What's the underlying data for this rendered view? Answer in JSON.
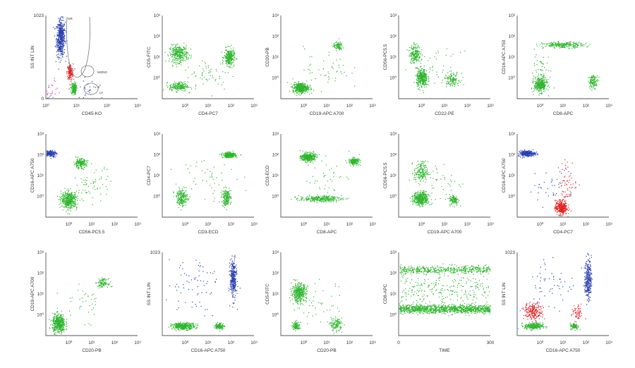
{
  "colors": {
    "green": "#2fb52f",
    "blue": "#2b3fae",
    "red": "#e02424",
    "magenta": "#c040c0",
    "axis": "#555555",
    "gate": "#7a7a7a"
  },
  "chart_data": [
    {
      "type": "scatter",
      "xlabel": "CD45-KO",
      "ylabel": "SS INT LIN",
      "x_scale": "log",
      "y_scale": "linear",
      "xlim": [
        1,
        1000
      ],
      "ylim": [
        0,
        1023
      ],
      "x_ticks": [
        "10⁰",
        "10¹",
        "10²",
        "10³"
      ],
      "y_ticks": [
        "0",
        "1023"
      ],
      "gate_labels": [
        "GR",
        "MONO",
        "LY"
      ],
      "clusters": [
        {
          "color": "blue",
          "x": 3,
          "y": 750,
          "n": 520,
          "sx": 0.07,
          "sy": 0.11
        },
        {
          "color": "red",
          "x": 6,
          "y": 330,
          "n": 160,
          "sx": 0.05,
          "sy": 0.05
        },
        {
          "color": "green",
          "x": 8,
          "y": 130,
          "n": 170,
          "sx": 0.04,
          "sy": 0.035
        },
        {
          "color": "magenta",
          "x": 1.3,
          "y": 80,
          "n": 40,
          "sx": 0.18,
          "sy": 0.08
        },
        {
          "color": "blue",
          "x": 30,
          "y": 110,
          "n": 30,
          "sx": 0.25,
          "sy": 0.1
        }
      ]
    },
    {
      "type": "scatter",
      "xlabel": "CD4-PC7",
      "ylabel": "CD5-FITC",
      "x_scale": "log",
      "y_scale": "log",
      "xlim": [
        0.1,
        1000
      ],
      "ylim": [
        0.1,
        1000
      ],
      "x_ticks": [
        "10⁰",
        "10¹",
        "10²",
        "10³"
      ],
      "y_ticks": [
        "10³",
        "10²",
        "10¹",
        "10⁰"
      ],
      "clusters": [
        {
          "color": "green",
          "x": 0.5,
          "y": 15,
          "n": 320,
          "sx": 0.2,
          "sy": 0.2
        },
        {
          "color": "green",
          "x": 80,
          "y": 10,
          "n": 280,
          "sx": 0.11,
          "sy": 0.2
        },
        {
          "color": "green",
          "x": 0.5,
          "y": 0.4,
          "n": 200,
          "sx": 0.2,
          "sy": 0.11
        },
        {
          "color": "green",
          "x": 10,
          "y": 1.5,
          "n": 60,
          "sx": 0.5,
          "sy": 0.4
        }
      ]
    },
    {
      "type": "scatter",
      "xlabel": "CD19-APC A700",
      "ylabel": "CD20-PB",
      "x_scale": "log",
      "y_scale": "log",
      "xlim": [
        0.1,
        1000
      ],
      "ylim": [
        0.1,
        1000
      ],
      "x_ticks": [
        "10⁰",
        "10¹",
        "10²",
        "10³"
      ],
      "y_ticks": [
        "10³",
        "10²",
        "10¹",
        "10⁰"
      ],
      "clusters": [
        {
          "color": "green",
          "x": 0.7,
          "y": 0.35,
          "n": 460,
          "sx": 0.17,
          "sy": 0.12
        },
        {
          "color": "green",
          "x": 30,
          "y": 35,
          "n": 90,
          "sx": 0.1,
          "sy": 0.1
        },
        {
          "color": "green",
          "x": 10,
          "y": 3,
          "n": 50,
          "sx": 0.5,
          "sy": 0.5
        }
      ]
    },
    {
      "type": "scatter",
      "xlabel": "CD22-PE",
      "ylabel": "CD56-PC5.5",
      "x_scale": "log",
      "y_scale": "log",
      "xlim": [
        0.1,
        1000
      ],
      "ylim": [
        0.1,
        1000
      ],
      "x_ticks": [
        "10⁰",
        "10¹",
        "10²",
        "10³"
      ],
      "y_ticks": [
        "10³",
        "10²",
        "10¹",
        "10⁰"
      ],
      "clusters": [
        {
          "color": "green",
          "x": 0.5,
          "y": 15,
          "n": 200,
          "sx": 0.12,
          "sy": 0.22
        },
        {
          "color": "green",
          "x": 1,
          "y": 1,
          "n": 350,
          "sx": 0.12,
          "sy": 0.22
        },
        {
          "color": "green",
          "x": 20,
          "y": 0.9,
          "n": 120,
          "sx": 0.16,
          "sy": 0.15
        },
        {
          "color": "green",
          "x": 5,
          "y": 3,
          "n": 40,
          "sx": 0.5,
          "sy": 0.4
        }
      ]
    },
    {
      "type": "scatter",
      "xlabel": "CD8-APC",
      "ylabel": "CD16-APC A750",
      "x_scale": "log",
      "y_scale": "log",
      "xlim": [
        0.1,
        1000
      ],
      "ylim": [
        0.1,
        1000
      ],
      "x_ticks": [
        "10⁰",
        "10¹",
        "10²",
        "10³"
      ],
      "y_ticks": [
        "10³",
        "10²",
        "10¹",
        "10⁰"
      ],
      "clusters": [
        {
          "color": "green",
          "x": 1,
          "y": 0.5,
          "n": 360,
          "sx": 0.14,
          "sy": 0.18
        },
        {
          "color": "green",
          "x": 10,
          "y": 40,
          "n": 240,
          "sx": 0.45,
          "sy": 0.07
        },
        {
          "color": "green",
          "x": 200,
          "y": 0.7,
          "n": 120,
          "sx": 0.1,
          "sy": 0.15
        },
        {
          "color": "green",
          "x": 1,
          "y": 5,
          "n": 40,
          "sx": 0.2,
          "sy": 0.4
        }
      ]
    },
    {
      "type": "scatter",
      "xlabel": "CD56-PC5.5",
      "ylabel": "CD16-APC A750",
      "x_scale": "log",
      "y_scale": "log",
      "xlim": [
        0.1,
        1000
      ],
      "ylim": [
        0.1,
        1000
      ],
      "x_ticks": [
        "10⁰",
        "10¹",
        "10²",
        "10³"
      ],
      "y_ticks": [
        "10³",
        "10²",
        "10¹",
        "10⁰"
      ],
      "clusters": [
        {
          "color": "blue",
          "x": 0.15,
          "y": 120,
          "n": 180,
          "sx": 0.13,
          "sy": 0.08
        },
        {
          "color": "green",
          "x": 3,
          "y": 40,
          "n": 180,
          "sx": 0.14,
          "sy": 0.11
        },
        {
          "color": "green",
          "x": 1,
          "y": 0.7,
          "n": 440,
          "sx": 0.17,
          "sy": 0.2
        },
        {
          "color": "green",
          "x": 10,
          "y": 4,
          "n": 60,
          "sx": 0.4,
          "sy": 0.4
        }
      ]
    },
    {
      "type": "scatter",
      "xlabel": "CD3-ECD",
      "ylabel": "CD4-PC7",
      "x_scale": "log",
      "y_scale": "log",
      "xlim": [
        0.1,
        1000
      ],
      "ylim": [
        0.1,
        1000
      ],
      "x_ticks": [
        "10⁰",
        "10¹",
        "10²",
        "10³"
      ],
      "y_ticks": [
        "10³",
        "10²",
        "10¹",
        "10⁰"
      ],
      "clusters": [
        {
          "color": "green",
          "x": 80,
          "y": 100,
          "n": 300,
          "sx": 0.14,
          "sy": 0.06
        },
        {
          "color": "green",
          "x": 0.7,
          "y": 0.9,
          "n": 200,
          "sx": 0.12,
          "sy": 0.2
        },
        {
          "color": "green",
          "x": 60,
          "y": 0.9,
          "n": 180,
          "sx": 0.1,
          "sy": 0.2
        },
        {
          "color": "green",
          "x": 10,
          "y": 10,
          "n": 50,
          "sx": 0.6,
          "sy": 0.6
        }
      ]
    },
    {
      "type": "scatter",
      "xlabel": "CD8-APC",
      "ylabel": "CD3-ECD",
      "x_scale": "log",
      "y_scale": "log",
      "xlim": [
        0.1,
        1000
      ],
      "ylim": [
        0.1,
        1000
      ],
      "x_ticks": [
        "10⁰",
        "10¹",
        "10²",
        "10³"
      ],
      "y_ticks": [
        "10³",
        "10²",
        "10¹",
        "10⁰"
      ],
      "clusters": [
        {
          "color": "green",
          "x": 1.5,
          "y": 80,
          "n": 380,
          "sx": 0.15,
          "sy": 0.1
        },
        {
          "color": "green",
          "x": 150,
          "y": 50,
          "n": 170,
          "sx": 0.12,
          "sy": 0.08
        },
        {
          "color": "green",
          "x": 5,
          "y": 0.8,
          "n": 280,
          "sx": 0.45,
          "sy": 0.07
        },
        {
          "color": "green",
          "x": 10,
          "y": 10,
          "n": 40,
          "sx": 0.5,
          "sy": 0.5
        }
      ]
    },
    {
      "type": "scatter",
      "xlabel": "CD19-APC A700",
      "ylabel": "CD56-PC5.5",
      "x_scale": "log",
      "y_scale": "log",
      "xlim": [
        0.1,
        1000
      ],
      "ylim": [
        0.1,
        1000
      ],
      "x_ticks": [
        "10⁰",
        "10¹",
        "10²",
        "10³"
      ],
      "y_ticks": [
        "10³",
        "10²",
        "10¹",
        "10⁰"
      ],
      "clusters": [
        {
          "color": "green",
          "x": 0.9,
          "y": 0.8,
          "n": 430,
          "sx": 0.16,
          "sy": 0.16
        },
        {
          "color": "green",
          "x": 0.9,
          "y": 15,
          "n": 180,
          "sx": 0.15,
          "sy": 0.25
        },
        {
          "color": "green",
          "x": 25,
          "y": 0.7,
          "n": 120,
          "sx": 0.1,
          "sy": 0.13
        },
        {
          "color": "green",
          "x": 8,
          "y": 5,
          "n": 40,
          "sx": 0.5,
          "sy": 0.5
        }
      ]
    },
    {
      "type": "scatter",
      "xlabel": "CD4-PC7",
      "ylabel": "CD16-APC A750",
      "x_scale": "log",
      "y_scale": "log",
      "xlim": [
        0.1,
        1000
      ],
      "ylim": [
        0.1,
        1000
      ],
      "x_ticks": [
        "10⁰",
        "10¹",
        "10²",
        "10³"
      ],
      "y_ticks": [
        "10³",
        "10²",
        "10¹",
        "10⁰"
      ],
      "clusters": [
        {
          "color": "blue",
          "x": 0.25,
          "y": 120,
          "n": 260,
          "sx": 0.18,
          "sy": 0.07
        },
        {
          "color": "red",
          "x": 8,
          "y": 0.3,
          "n": 340,
          "sx": 0.13,
          "sy": 0.17
        },
        {
          "color": "red",
          "x": 15,
          "y": 5,
          "n": 60,
          "sx": 0.2,
          "sy": 0.5
        },
        {
          "color": "blue",
          "x": 3,
          "y": 3,
          "n": 40,
          "sx": 0.5,
          "sy": 0.5
        }
      ]
    },
    {
      "type": "scatter",
      "xlabel": "CD20-PB",
      "ylabel": "CD19-APC A700",
      "x_scale": "log",
      "y_scale": "log",
      "xlim": [
        0.1,
        1000
      ],
      "ylim": [
        0.1,
        1000
      ],
      "x_ticks": [
        "10⁰",
        "10¹",
        "10²",
        "10³"
      ],
      "y_ticks": [
        "10³",
        "10²",
        "10¹",
        "10⁰"
      ],
      "clusters": [
        {
          "color": "green",
          "x": 0.35,
          "y": 0.4,
          "n": 470,
          "sx": 0.14,
          "sy": 0.22
        },
        {
          "color": "green",
          "x": 30,
          "y": 35,
          "n": 100,
          "sx": 0.11,
          "sy": 0.1
        },
        {
          "color": "green",
          "x": 5,
          "y": 5,
          "n": 40,
          "sx": 0.5,
          "sy": 0.5
        }
      ]
    },
    {
      "type": "scatter",
      "xlabel": "CD16-APC A750",
      "ylabel": "SS INT LIN",
      "x_scale": "log",
      "y_scale": "linear",
      "xlim": [
        0.1,
        1000
      ],
      "ylim": [
        0,
        1023
      ],
      "x_ticks": [
        "10⁰",
        "10¹",
        "10²",
        "10³"
      ],
      "y_ticks": [
        "1023"
      ],
      "clusters": [
        {
          "color": "blue",
          "x": 120,
          "y": 700,
          "n": 320,
          "sx": 0.07,
          "sy": 0.12
        },
        {
          "color": "green",
          "x": 0.8,
          "y": 120,
          "n": 360,
          "sx": 0.25,
          "sy": 0.02
        },
        {
          "color": "green",
          "x": 30,
          "y": 120,
          "n": 120,
          "sx": 0.1,
          "sy": 0.02
        },
        {
          "color": "blue",
          "x": 2,
          "y": 650,
          "n": 70,
          "sx": 0.55,
          "sy": 0.18
        }
      ]
    },
    {
      "type": "scatter",
      "xlabel": "CD20-PB",
      "ylabel": "CD5-FITC",
      "x_scale": "log",
      "y_scale": "log",
      "xlim": [
        0.1,
        1000
      ],
      "ylim": [
        0.1,
        1000
      ],
      "x_ticks": [
        "10⁰",
        "10¹",
        "10²",
        "10³"
      ],
      "y_ticks": [
        "10³",
        "10²",
        "10¹",
        "10⁰"
      ],
      "clusters": [
        {
          "color": "green",
          "x": 0.6,
          "y": 12,
          "n": 400,
          "sx": 0.16,
          "sy": 0.22
        },
        {
          "color": "green",
          "x": 0.45,
          "y": 0.3,
          "n": 120,
          "sx": 0.08,
          "sy": 0.1
        },
        {
          "color": "green",
          "x": 25,
          "y": 0.35,
          "n": 130,
          "sx": 0.13,
          "sy": 0.15
        },
        {
          "color": "green",
          "x": 5,
          "y": 3,
          "n": 40,
          "sx": 0.5,
          "sy": 0.5
        }
      ]
    },
    {
      "type": "scatter",
      "xlabel": "TIME",
      "ylabel": "CD8-APC",
      "x_scale": "linear",
      "y_scale": "log",
      "xlim": [
        0,
        300
      ],
      "ylim": [
        0.1,
        1000
      ],
      "x_ticks": [
        "0",
        "300"
      ],
      "y_ticks": [
        "10³",
        "10²",
        "10¹",
        "10⁰"
      ],
      "bands": [
        {
          "color": "green",
          "y": 2,
          "n": 1100,
          "sy": 0.1
        },
        {
          "color": "green",
          "y": 150,
          "n": 480,
          "sy": 0.09
        },
        {
          "color": "green",
          "y": 15,
          "n": 260,
          "sy": 0.45
        }
      ]
    },
    {
      "type": "scatter",
      "xlabel": "CD16-APC A750",
      "ylabel": "SS INT LIN",
      "x_scale": "log",
      "y_scale": "linear",
      "xlim": [
        0.1,
        1000
      ],
      "ylim": [
        0,
        1023
      ],
      "x_ticks": [
        "10⁰",
        "10¹",
        "10²",
        "10³"
      ],
      "y_ticks": [
        "1023"
      ],
      "clusters": [
        {
          "color": "blue",
          "x": 120,
          "y": 700,
          "n": 300,
          "sx": 0.07,
          "sy": 0.12
        },
        {
          "color": "red",
          "x": 0.5,
          "y": 300,
          "n": 220,
          "sx": 0.2,
          "sy": 0.05
        },
        {
          "color": "red",
          "x": 40,
          "y": 280,
          "n": 60,
          "sx": 0.12,
          "sy": 0.05
        },
        {
          "color": "green",
          "x": 0.5,
          "y": 120,
          "n": 260,
          "sx": 0.2,
          "sy": 0.02
        },
        {
          "color": "green",
          "x": 30,
          "y": 120,
          "n": 100,
          "sx": 0.09,
          "sy": 0.02
        },
        {
          "color": "blue",
          "x": 3,
          "y": 650,
          "n": 60,
          "sx": 0.55,
          "sy": 0.18
        }
      ]
    }
  ]
}
